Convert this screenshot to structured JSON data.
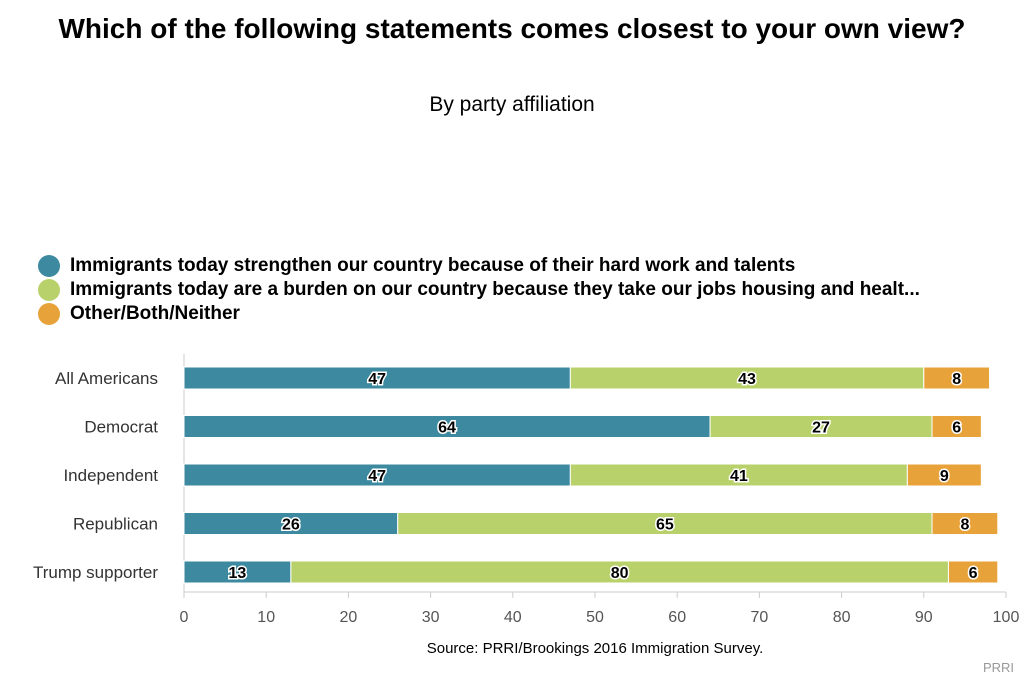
{
  "title": "Which of the following statements comes closest to your own view?",
  "subtitle": "By party affiliation",
  "source": "Source: PRRI/Brookings 2016 Immigration Survey.",
  "credit": "PRRI",
  "colors": {
    "strengthen": "#3d8aa0",
    "burden": "#b8d16b",
    "other": "#e8a23a"
  },
  "chart_data": {
    "type": "bar",
    "orientation": "horizontal",
    "stacked": true,
    "categories": [
      "All Americans",
      "Democrat",
      "Independent",
      "Republican",
      "Trump supporter"
    ],
    "series": [
      {
        "name": "Immigrants today strengthen our country because of their hard work and talents",
        "color": "#3d8aa0",
        "values": [
          47,
          64,
          47,
          26,
          13
        ]
      },
      {
        "name": "Immigrants today are a burden on our country because they take our jobs housing and healt...",
        "color": "#b8d16b",
        "values": [
          43,
          27,
          41,
          65,
          80
        ]
      },
      {
        "name": "Other/Both/Neither",
        "color": "#e8a23a",
        "values": [
          8,
          6,
          9,
          8,
          6
        ]
      }
    ],
    "xlim": [
      0,
      100
    ],
    "xticks": [
      0,
      10,
      20,
      30,
      40,
      50,
      60,
      70,
      80,
      90,
      100
    ],
    "legend_position": "top-left",
    "grid": false
  }
}
